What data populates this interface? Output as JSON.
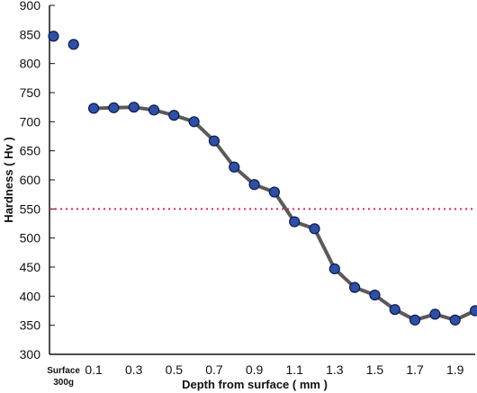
{
  "chart_data": {
    "type": "line",
    "xlabel": "Depth from surface ( mm )",
    "ylabel": "Hardness ( Hv )",
    "ylim": [
      300,
      900
    ],
    "yticks": [
      300,
      350,
      400,
      450,
      500,
      550,
      600,
      650,
      700,
      750,
      800,
      850,
      900
    ],
    "xlim": [
      -0.12,
      2.0
    ],
    "xticks": [
      {
        "value": -0.05,
        "label": "Surface",
        "sublabel": "300g"
      },
      {
        "value": 0.1,
        "label": "0.1"
      },
      {
        "value": 0.3,
        "label": "0.3"
      },
      {
        "value": 0.5,
        "label": "0.5"
      },
      {
        "value": 0.7,
        "label": "0.7"
      },
      {
        "value": 0.9,
        "label": "0.9"
      },
      {
        "value": 1.1,
        "label": "1.1"
      },
      {
        "value": 1.3,
        "label": "1.3"
      },
      {
        "value": 1.5,
        "label": "1.5"
      },
      {
        "value": 1.7,
        "label": "1.7"
      },
      {
        "value": 1.9,
        "label": "1.9"
      }
    ],
    "surface_points": [
      {
        "x": -0.1,
        "y": 847
      },
      {
        "x": 0.0,
        "y": 833
      }
    ],
    "series": [
      {
        "x": [
          0.1,
          0.2,
          0.3,
          0.4,
          0.5,
          0.6,
          0.7,
          0.8,
          0.9,
          1.0,
          1.1,
          1.2,
          1.3,
          1.4,
          1.5,
          1.6,
          1.7,
          1.8,
          1.9,
          2.0
        ],
        "y": [
          723,
          724,
          725,
          720,
          711,
          700,
          667,
          622,
          592,
          579,
          528,
          516,
          447,
          415,
          402,
          377,
          359,
          369,
          359,
          375
        ]
      }
    ],
    "reference_line": {
      "y": 550,
      "style": "dotted"
    },
    "colors": {
      "marker_fill": "#2e4fa8",
      "marker_stroke": "#0b1a4a",
      "line": "#5a5a5a",
      "reference_line": "#e0245e",
      "axis": "#111111"
    },
    "grid": false
  }
}
